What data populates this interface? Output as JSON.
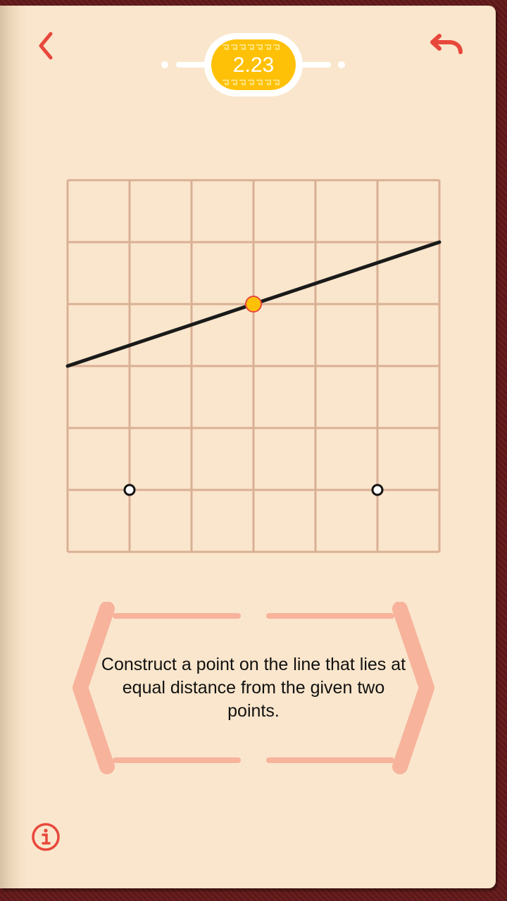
{
  "level": {
    "number": "2.23"
  },
  "task": {
    "text": "Construct a point on the line that lies at equal distance from the given two points."
  },
  "icons": {
    "back": "chevron-left-icon",
    "undo": "undo-arrow-icon",
    "info": "info-circle-icon"
  },
  "board": {
    "columns": 6,
    "rows": 6,
    "line": {
      "from": [
        0,
        3
      ],
      "to": [
        6,
        5
      ]
    },
    "given_points": [
      [
        1,
        1
      ],
      [
        5,
        1
      ]
    ],
    "highlighted_point": [
      3,
      4
    ]
  },
  "colors": {
    "accent_red": "#e8473b",
    "badge_yellow": "#ffc107",
    "grid": "#d9b095",
    "paper": "#fae6cc",
    "panel_pink": "#f7b39c",
    "line": "#1a1a1a"
  }
}
